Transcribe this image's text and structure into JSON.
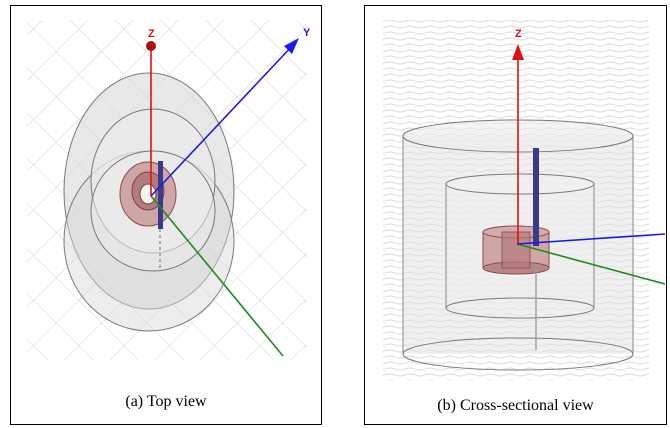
{
  "panel_a": {
    "caption": "(a) Top view",
    "axes": {
      "z_label": "Z",
      "y_label": "Y"
    }
  },
  "panel_b": {
    "caption": "(b) Cross-sectional view",
    "axes": {
      "z_label": "Z"
    }
  },
  "colors": {
    "z_axis": "#e01010",
    "y_axis": "#1a1aee",
    "x_axis": "#1c8c1c",
    "ring": "#b87272",
    "ring_fill": "#c99a9a",
    "cylinder": "#8a8a8a",
    "probe": "#2a2a7a",
    "grid": "#d4d4d4"
  }
}
